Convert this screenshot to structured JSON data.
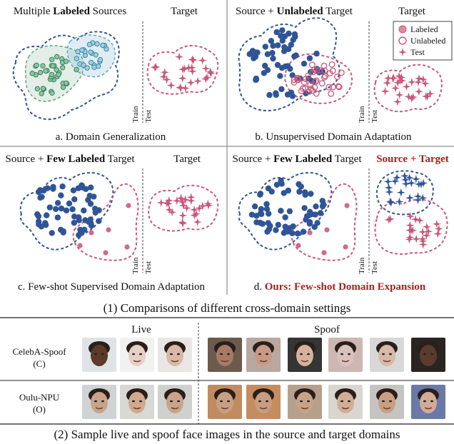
{
  "panels": {
    "a": {
      "title_pre": "Multiple ",
      "title_bold": "Labeled",
      "title_post": " Sources",
      "target": "Target",
      "caption": "a. Domain Generalization",
      "train": "Train",
      "test": "Test"
    },
    "b": {
      "title_pre": "Source + ",
      "title_bold": "Unlabeled",
      "title_post": " Target",
      "target": "Target",
      "caption": "b. Unsupervised Domain Adaptation",
      "train": "Train",
      "test": "Test"
    },
    "c": {
      "title_pre": "Source + ",
      "title_bold": "Few Labeled",
      "title_post": " Target",
      "target": "Target",
      "caption": "c. Few-shot Supervised Domain Adaptation",
      "train": "Train",
      "test": "Test"
    },
    "d": {
      "title_pre": "Source + ",
      "title_bold": "Few Labeled",
      "title_post": " Target",
      "target": "Source + Target",
      "caption_pre": "d. ",
      "caption_red": "Ours: Few-shot Domain Expansion",
      "train": "Train",
      "test": "Test"
    }
  },
  "legend": {
    "labeled": "Labeled",
    "unlabeled": "Unlabeled",
    "test": "Test"
  },
  "caption1": "(1) Comparisons of different cross-domain settings",
  "faces": {
    "live": "Live",
    "spoof": "Spoof",
    "row1_label": "CelebA-Spoof",
    "row1_code": "(C)",
    "row2_label": "Oulu-NPU",
    "row2_code": "(O)"
  },
  "caption2": "(2) Sample live and spoof face images in the source and target domains",
  "colors": {
    "source": "#2f5597",
    "target": "#c9577a",
    "green": "#5fa37a",
    "teal": "#61a5c2",
    "accent_red": "#b01c1c"
  }
}
